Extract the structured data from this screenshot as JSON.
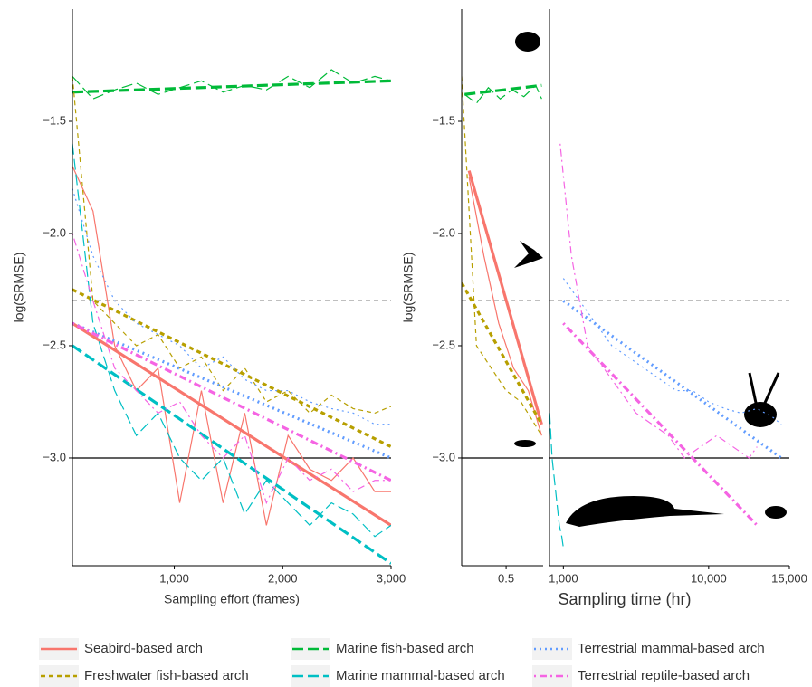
{
  "chart_data": [
    {
      "type": "line",
      "ylabel": "log(SRMSE)",
      "xlabel": "Sampling effort (frames)",
      "xlim": [
        60,
        3000
      ],
      "ylim": [
        -3.48,
        -1.0
      ],
      "xticks": [
        {
          "value": 1000,
          "label": "1,000"
        },
        {
          "value": 2000,
          "label": "2,000"
        },
        {
          "value": 3000,
          "label": "3,000"
        }
      ],
      "yticks": [
        {
          "value": -1.5,
          "label": "−1.5"
        },
        {
          "value": -2.0,
          "label": "−2.0"
        },
        {
          "value": -2.5,
          "label": "−2.5"
        },
        {
          "value": -3.0,
          "label": "−3.0"
        }
      ],
      "series": [
        {
          "color": "#00BA38",
          "dash": "longdash",
          "x": [
            60,
            250,
            450,
            650,
            850,
            1050,
            1250,
            1450,
            1650,
            1850,
            2050,
            2250,
            2450,
            2650,
            2850,
            3000
          ],
          "values": [
            -1.3,
            -1.4,
            -1.36,
            -1.33,
            -1.38,
            -1.35,
            -1.32,
            -1.37,
            -1.34,
            -1.36,
            -1.3,
            -1.35,
            -1.27,
            -1.33,
            -1.3,
            -1.32
          ],
          "trend_x": [
            60,
            3000
          ],
          "trend": [
            -1.37,
            -1.32
          ]
        },
        {
          "color": "#F8766D",
          "dash": "solid",
          "x": [
            60,
            250,
            450,
            650,
            850,
            1050,
            1250,
            1450,
            1650,
            1850,
            2050,
            2250,
            2450,
            2650,
            2850,
            3000
          ],
          "values": [
            -1.7,
            -1.9,
            -2.5,
            -2.7,
            -2.6,
            -3.2,
            -2.7,
            -3.2,
            -2.8,
            -3.3,
            -2.9,
            -3.05,
            -3.1,
            -3.0,
            -3.15,
            -3.15
          ],
          "trend_x": [
            60,
            3000
          ],
          "trend": [
            -2.4,
            -3.3
          ]
        },
        {
          "color": "#B79F00",
          "dash": "dashed",
          "x": [
            60,
            250,
            450,
            650,
            850,
            1050,
            1250,
            1450,
            1650,
            1850,
            2050,
            2250,
            2450,
            2650,
            2850,
            3000
          ],
          "values": [
            -1.3,
            -2.3,
            -2.4,
            -2.5,
            -2.45,
            -2.6,
            -2.55,
            -2.7,
            -2.6,
            -2.75,
            -2.7,
            -2.8,
            -2.72,
            -2.78,
            -2.8,
            -2.77
          ],
          "trend_x": [
            60,
            3000
          ],
          "trend": [
            -2.25,
            -2.95
          ]
        },
        {
          "color": "#00BFC4",
          "dash": "longdash",
          "x": [
            60,
            250,
            450,
            650,
            850,
            1050,
            1250,
            1450,
            1650,
            1850,
            2050,
            2250,
            2450,
            2650,
            2850,
            3000
          ],
          "values": [
            -1.6,
            -2.4,
            -2.7,
            -2.9,
            -2.8,
            -3.0,
            -3.1,
            -3.0,
            -3.25,
            -3.1,
            -3.2,
            -3.3,
            -3.2,
            -3.25,
            -3.35,
            -3.3
          ],
          "trend_x": [
            60,
            3000
          ],
          "trend": [
            -2.5,
            -3.47
          ]
        },
        {
          "color": "#619CFF",
          "dash": "dotted",
          "x": [
            60,
            250,
            450,
            650,
            850,
            1050,
            1250,
            1450,
            1650,
            1850,
            2050,
            2250,
            2450,
            2650,
            2850,
            3000
          ],
          "values": [
            -1.8,
            -2.1,
            -2.3,
            -2.4,
            -2.45,
            -2.5,
            -2.6,
            -2.55,
            -2.65,
            -2.7,
            -2.7,
            -2.75,
            -2.78,
            -2.8,
            -2.85,
            -2.85
          ],
          "trend_x": [
            60,
            3000
          ],
          "trend": [
            -2.4,
            -3.0
          ]
        },
        {
          "color": "#F564E3",
          "dash": "dotdash",
          "x": [
            60,
            250,
            450,
            650,
            850,
            1050,
            1250,
            1450,
            1650,
            1850,
            2050,
            2250,
            2450,
            2650,
            2850,
            3000
          ],
          "values": [
            -2.0,
            -2.3,
            -2.6,
            -2.7,
            -2.8,
            -2.75,
            -2.9,
            -3.0,
            -2.9,
            -3.2,
            -3.0,
            -3.1,
            -3.05,
            -3.15,
            -3.1,
            -3.1
          ],
          "trend_x": [
            60,
            3000
          ],
          "trend": [
            -2.4,
            -3.1
          ]
        }
      ]
    },
    {
      "type": "line",
      "ylabel": "log(SRMSE)",
      "xlim": [
        0.2,
        0.75
      ],
      "ylim": [
        -3.48,
        -1.0
      ],
      "xticks": [
        0.5
      ],
      "yticks": [
        {
          "value": -1.5,
          "label": "−1.5"
        },
        {
          "value": -2.0,
          "label": "−2.0"
        },
        {
          "value": -2.5,
          "label": "−2.5"
        },
        {
          "value": -3.0,
          "label": "−3.0"
        }
      ],
      "series": [
        {
          "color": "#00BA38",
          "dash": "longdash",
          "x": [
            0.22,
            0.3,
            0.38,
            0.46,
            0.54,
            0.62,
            0.7,
            0.74
          ],
          "values": [
            -1.38,
            -1.42,
            -1.35,
            -1.4,
            -1.36,
            -1.39,
            -1.34,
            -1.4
          ],
          "trend_x": [
            0.22,
            0.74
          ],
          "trend": [
            -1.38,
            -1.34
          ]
        },
        {
          "color": "#F8766D",
          "dash": "solid",
          "x": [
            0.25,
            0.35,
            0.45,
            0.55,
            0.65,
            0.74
          ],
          "values": [
            -1.75,
            -2.1,
            -2.4,
            -2.6,
            -2.7,
            -2.9
          ],
          "trend_x": [
            0.25,
            0.74
          ],
          "trend": [
            -1.72,
            -2.85
          ]
        },
        {
          "color": "#B79F00",
          "dash": "dashed",
          "x": [
            0.2,
            0.3,
            0.4,
            0.5,
            0.6,
            0.74
          ],
          "values": [
            -1.3,
            -2.5,
            -2.6,
            -2.7,
            -2.75,
            -2.9
          ],
          "trend_x": [
            0.2,
            0.74
          ],
          "trend": [
            -2.22,
            -2.85
          ]
        }
      ]
    },
    {
      "type": "line",
      "xlabel": "Sampling time  (hr)",
      "xlim": [
        140,
        15000
      ],
      "ylim": [
        -3.48,
        -1.0
      ],
      "xticks": [
        {
          "value": 1000,
          "label": "1,000"
        },
        {
          "value": 10000,
          "label": "10,000"
        },
        {
          "value": 15000,
          "label": "15,000"
        }
      ],
      "series": [
        {
          "color": "#00BFC4",
          "dash": "longdash",
          "x": [
            150,
            300,
            450,
            600,
            750,
            900,
            1000
          ],
          "values": [
            -2.8,
            -3.0,
            -3.1,
            -3.2,
            -3.3,
            -3.35,
            -3.4
          ]
        },
        {
          "color": "#619CFF",
          "dash": "dotted",
          "x": [
            1000,
            2000,
            3000,
            4000,
            5000,
            6000,
            7000,
            8000,
            9000,
            10000,
            11000,
            12000,
            13000,
            14000,
            14500
          ],
          "values": [
            -2.2,
            -2.3,
            -2.4,
            -2.5,
            -2.55,
            -2.6,
            -2.65,
            -2.7,
            -2.7,
            -2.75,
            -2.78,
            -2.8,
            -2.78,
            -2.82,
            -2.85
          ],
          "trend_x": [
            1000,
            14500
          ],
          "trend": [
            -2.3,
            -3.0
          ]
        },
        {
          "color": "#F564E3",
          "dash": "dotdash",
          "x": [
            800,
            1500,
            2500,
            3500,
            4500,
            5500,
            6500,
            7500,
            8500,
            9500,
            10500,
            11500,
            12500,
            13000
          ],
          "values": [
            -1.6,
            -2.1,
            -2.5,
            -2.6,
            -2.7,
            -2.8,
            -2.85,
            -2.9,
            -3.0,
            -2.95,
            -2.9,
            -2.95,
            -3.0,
            -2.95
          ],
          "trend_x": [
            1000,
            13000
          ],
          "trend": [
            -2.4,
            -3.3
          ]
        }
      ]
    }
  ],
  "reference_lines": [
    {
      "value": -2.3,
      "style": "dashed"
    },
    {
      "value": -3.0,
      "style": "solid"
    }
  ],
  "legend": [
    {
      "name": "Seabird-based arch",
      "color": "#F8766D",
      "dash": "solid"
    },
    {
      "name": "Freshwater fish-based arch",
      "color": "#B79F00",
      "dash": "dashed"
    },
    {
      "name": "Marine fish-based arch",
      "color": "#00BA38",
      "dash": "longdash"
    },
    {
      "name": "Marine mammal-based arch",
      "color": "#00BFC4",
      "dash": "longdash"
    },
    {
      "name": "Terrestrial mammal-based arch",
      "color": "#619CFF",
      "dash": "dotted"
    },
    {
      "name": "Terrestrial reptile-based arch",
      "color": "#F564E3",
      "dash": "dotdash"
    }
  ]
}
